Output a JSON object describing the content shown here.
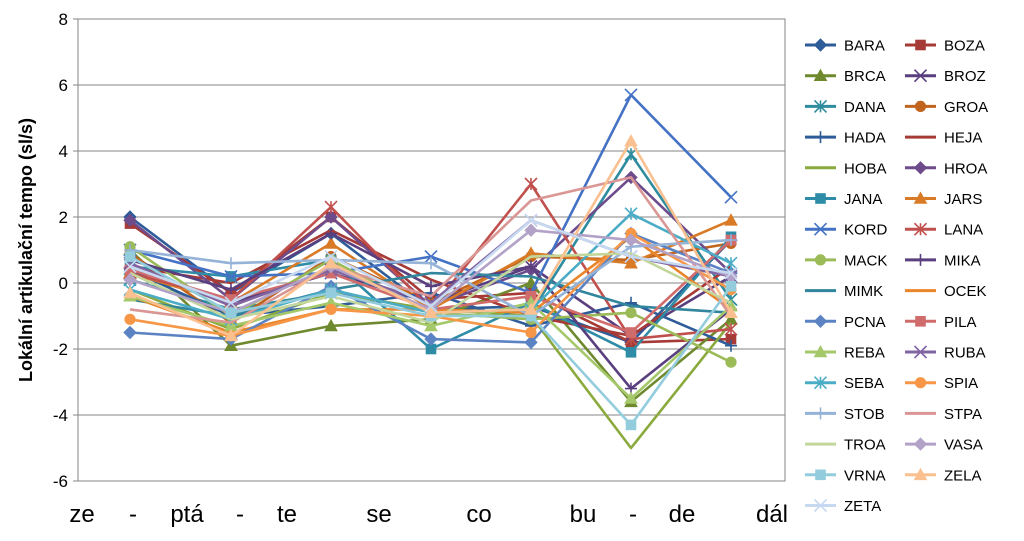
{
  "chart_data": {
    "type": "line",
    "title": "",
    "ylabel": "Lokální artikulační tempo (sl/s)",
    "ylim": [
      -6,
      8
    ],
    "yticks": [
      -6,
      -4,
      -2,
      0,
      2,
      4,
      6,
      8
    ],
    "grid": true,
    "legend_position": "right",
    "categories": [
      "ze - ptá",
      "- te",
      "se",
      "co",
      "bu",
      "- de",
      "dál"
    ],
    "axis_syllables": [
      "ze",
      "-",
      "ptá",
      "-",
      "te",
      "se",
      "co",
      "bu",
      "-",
      "de",
      "dál"
    ],
    "series": [
      {
        "name": "BARA",
        "color": "#2E5C99",
        "marker": "diamond",
        "values": [
          2.0,
          -0.3,
          1.5,
          -0.8,
          -0.7,
          -1.8,
          1.3
        ]
      },
      {
        "name": "BOZA",
        "color": "#A63A36",
        "marker": "square",
        "values": [
          1.8,
          -0.3,
          2.0,
          -0.5,
          -0.3,
          -1.8,
          -1.7
        ]
      },
      {
        "name": "BRCA",
        "color": "#6F8A2E",
        "marker": "triangle",
        "values": [
          1.0,
          -1.9,
          -1.3,
          -1.1,
          0.0,
          -3.6,
          -1.1
        ]
      },
      {
        "name": "BROZ",
        "color": "#5A3F7F",
        "marker": "x",
        "values": [
          0.3,
          -0.6,
          0.3,
          -0.6,
          0.5,
          -1.6,
          0.2
        ]
      },
      {
        "name": "DANA",
        "color": "#2E8C9E",
        "marker": "asterisk",
        "values": [
          0.1,
          -0.8,
          -0.3,
          -0.8,
          -0.9,
          3.9,
          -0.5
        ]
      },
      {
        "name": "GROA",
        "color": "#C0641E",
        "marker": "circle",
        "values": [
          0.9,
          -1.2,
          0.8,
          -0.6,
          0.8,
          0.7,
          1.2
        ]
      },
      {
        "name": "HADA",
        "color": "#2E5C99",
        "marker": "plus",
        "values": [
          0.4,
          -1.0,
          -0.7,
          -0.3,
          -1.3,
          -0.6,
          -1.9
        ]
      },
      {
        "name": "HEJA",
        "color": "#A63A36",
        "marker": "none",
        "values": [
          0.5,
          0.0,
          1.6,
          0.1,
          -1.0,
          -1.6,
          0.5
        ]
      },
      {
        "name": "HOBA",
        "color": "#8BAA3E",
        "marker": "none",
        "values": [
          -0.2,
          -1.4,
          -0.3,
          -0.8,
          -1.0,
          -5.0,
          -1.2
        ]
      },
      {
        "name": "HROA",
        "color": "#6E4C8C",
        "marker": "diamond",
        "values": [
          1.9,
          -0.5,
          2.0,
          -0.7,
          0.4,
          3.2,
          0.3
        ]
      },
      {
        "name": "JANA",
        "color": "#2E8CA6",
        "marker": "square",
        "values": [
          0.5,
          0.2,
          0.7,
          -2.0,
          -0.6,
          -2.1,
          1.4
        ]
      },
      {
        "name": "JARS",
        "color": "#D97B26",
        "marker": "triangle",
        "values": [
          0.3,
          -0.6,
          1.2,
          -0.8,
          0.9,
          0.6,
          1.9
        ]
      },
      {
        "name": "KORD",
        "color": "#4472C4",
        "marker": "x",
        "values": [
          1.0,
          0.2,
          0.3,
          0.8,
          -0.3,
          5.7,
          2.6
        ]
      },
      {
        "name": "LANA",
        "color": "#C0504D",
        "marker": "asterisk",
        "values": [
          0.3,
          -0.5,
          2.3,
          -0.8,
          3.0,
          -1.7,
          -1.4
        ]
      },
      {
        "name": "MACK",
        "color": "#9BBB59",
        "marker": "circle",
        "values": [
          1.1,
          -1.0,
          0.7,
          -0.9,
          -1.1,
          -0.9,
          -2.4
        ]
      },
      {
        "name": "MIKA",
        "color": "#5A3F7F",
        "marker": "plus",
        "values": [
          0.7,
          -0.2,
          1.5,
          -0.1,
          0.5,
          -3.2,
          -0.8
        ]
      },
      {
        "name": "MIMK",
        "color": "#31859C",
        "marker": "none",
        "values": [
          -0.5,
          -1.0,
          -0.2,
          0.3,
          0.2,
          -0.7,
          -0.9
        ]
      },
      {
        "name": "OCEK",
        "color": "#E9852A",
        "marker": "none",
        "values": [
          -0.4,
          -1.5,
          -0.8,
          -0.8,
          -0.9,
          1.4,
          -0.8
        ]
      },
      {
        "name": "PCNA",
        "color": "#5B83C4",
        "marker": "diamond",
        "values": [
          -1.5,
          -1.7,
          -0.1,
          -1.7,
          -1.8,
          1.5,
          0.3
        ]
      },
      {
        "name": "PILA",
        "color": "#D06C6C",
        "marker": "square",
        "values": [
          0.4,
          -0.5,
          0.3,
          -0.8,
          -0.4,
          -1.5,
          1.3
        ]
      },
      {
        "name": "REBA",
        "color": "#A5C86A",
        "marker": "triangle",
        "values": [
          -0.4,
          -1.3,
          -0.6,
          -1.3,
          -0.6,
          -3.5,
          -0.7
        ]
      },
      {
        "name": "RUBA",
        "color": "#8064A2",
        "marker": "x",
        "values": [
          0.6,
          -0.7,
          0.4,
          -0.6,
          1.9,
          0.8,
          0.2
        ]
      },
      {
        "name": "SEBA",
        "color": "#4BACC6",
        "marker": "asterisk",
        "values": [
          -0.2,
          -1.1,
          -0.2,
          -0.9,
          -0.8,
          2.1,
          0.6
        ]
      },
      {
        "name": "SPIA",
        "color": "#F79646",
        "marker": "circle",
        "values": [
          -1.1,
          -1.6,
          -0.8,
          -1.0,
          -1.5,
          1.5,
          -0.2
        ]
      },
      {
        "name": "STOB",
        "color": "#95B3D7",
        "marker": "plus",
        "values": [
          1.0,
          0.6,
          0.7,
          0.6,
          -1.0,
          1.1,
          1.3
        ]
      },
      {
        "name": "STPA",
        "color": "#D99694",
        "marker": "none",
        "values": [
          -0.8,
          -1.2,
          0.5,
          -0.4,
          2.5,
          3.2,
          -1.0
        ]
      },
      {
        "name": "TROA",
        "color": "#C3D69B",
        "marker": "none",
        "values": [
          0.3,
          -1.1,
          -0.4,
          -1.2,
          0.8,
          0.9,
          -0.6
        ]
      },
      {
        "name": "VASA",
        "color": "#B3A2C7",
        "marker": "diamond",
        "values": [
          0.1,
          -0.9,
          0.5,
          -0.8,
          1.6,
          1.3,
          0.2
        ]
      },
      {
        "name": "VRNA",
        "color": "#93CDDD",
        "marker": "square",
        "values": [
          0.8,
          -0.9,
          -0.3,
          -1.0,
          -1.0,
          -4.3,
          -0.1
        ]
      },
      {
        "name": "ZELA",
        "color": "#FAC090",
        "marker": "triangle",
        "values": [
          -0.3,
          -1.6,
          0.6,
          -0.9,
          -0.8,
          4.3,
          -0.9
        ]
      },
      {
        "name": "ZETA",
        "color": "#C6D9F1",
        "marker": "x",
        "values": [
          0.5,
          -0.6,
          0.8,
          -0.7,
          1.9,
          0.8,
          0.3
        ]
      }
    ]
  }
}
